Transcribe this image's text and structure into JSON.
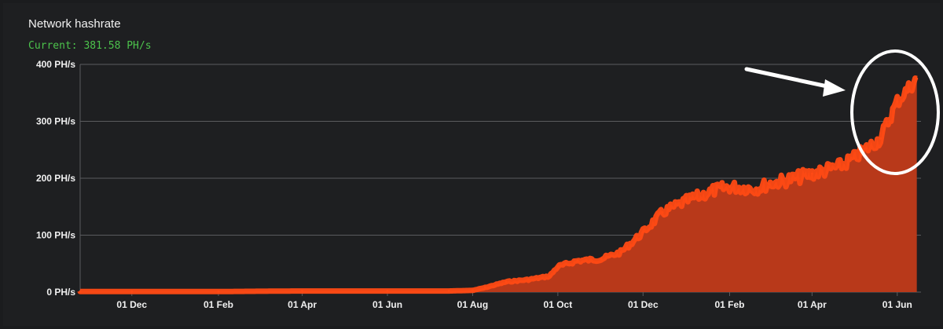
{
  "header": {
    "title": "Network hashrate",
    "current": "Current: 381.58 PH/s"
  },
  "colors": {
    "fill": "#b8391a",
    "line": "#ff4a14",
    "grid": "#5a5b5e",
    "annotation": "#ffffff"
  },
  "chart_data": {
    "type": "area",
    "title": "Network hashrate",
    "xlabel": "",
    "ylabel": "",
    "ylim": [
      0,
      400
    ],
    "y_unit": "PH/s",
    "y_ticks": [
      "0 PH/s",
      "100 PH/s",
      "200 PH/s",
      "300 PH/s",
      "400 PH/s"
    ],
    "x_ticks": [
      "01 Dec",
      "01 Feb",
      "01 Apr",
      "01 Jun",
      "01 Aug",
      "01 Oct",
      "01 Dec",
      "01 Feb",
      "01 Apr",
      "01 Jun"
    ],
    "grid": true,
    "legend": "none",
    "series": [
      {
        "name": "",
        "x": [
          "2019-10-25",
          "2019-12-01",
          "2020-02-01",
          "2020-04-01",
          "2020-06-01",
          "2020-07-15",
          "2020-08-01",
          "2020-08-10",
          "2020-08-25",
          "2020-09-10",
          "2020-09-25",
          "2020-10-01",
          "2020-10-15",
          "2020-11-01",
          "2020-11-15",
          "2020-12-01",
          "2020-12-15",
          "2021-01-01",
          "2021-01-20",
          "2021-02-01",
          "2021-02-20",
          "2021-03-01",
          "2021-03-20",
          "2021-04-01",
          "2021-04-20",
          "2021-05-01",
          "2021-05-10",
          "2021-05-20",
          "2021-06-01",
          "2021-06-15"
        ],
        "values": [
          1,
          1,
          1,
          2,
          2,
          2,
          3,
          8,
          18,
          22,
          28,
          45,
          55,
          58,
          70,
          105,
          140,
          160,
          178,
          185,
          182,
          190,
          200,
          208,
          220,
          235,
          252,
          270,
          335,
          375
        ]
      }
    ],
    "annotations": [
      {
        "kind": "arrow"
      },
      {
        "kind": "ellipse"
      }
    ]
  }
}
